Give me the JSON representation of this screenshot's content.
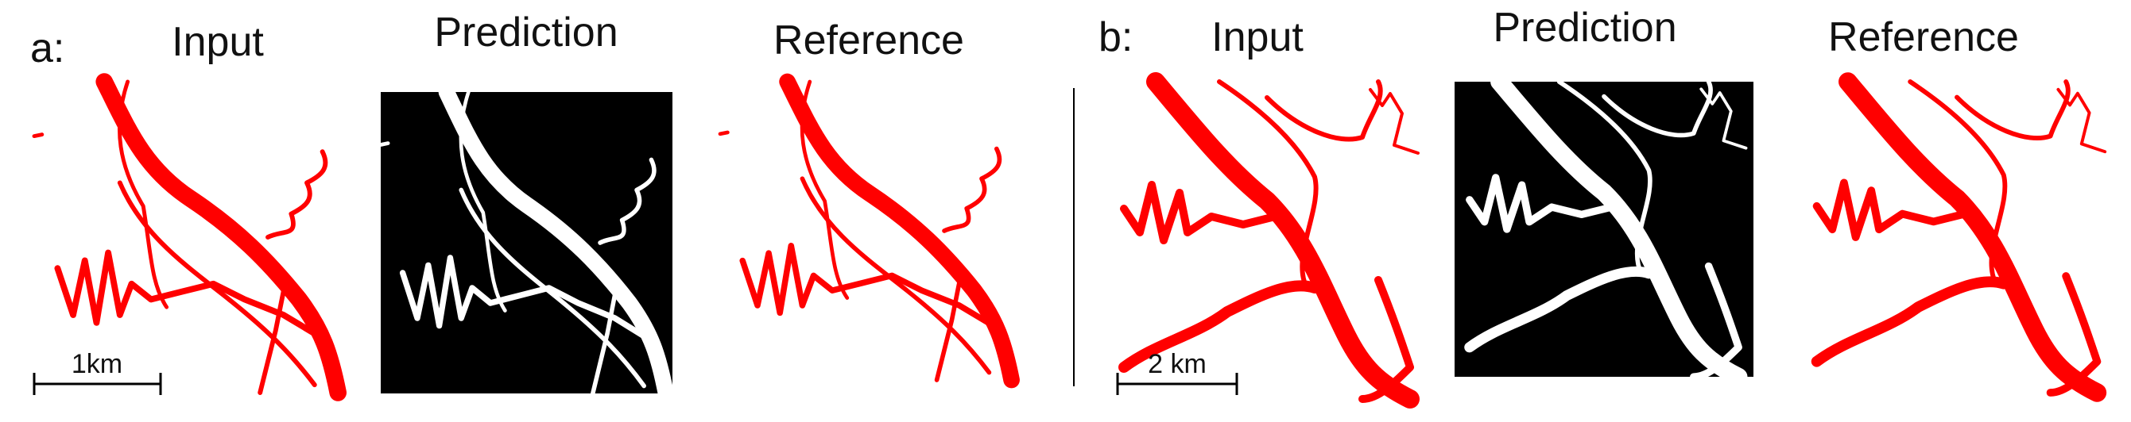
{
  "panels": [
    {
      "label": "a:",
      "titles": [
        "Input",
        "Prediction",
        "Reference"
      ],
      "scale_bar": "1km"
    },
    {
      "label": "b:",
      "titles": [
        "Input",
        "Prediction",
        "Reference"
      ],
      "scale_bar": "2 km"
    }
  ]
}
